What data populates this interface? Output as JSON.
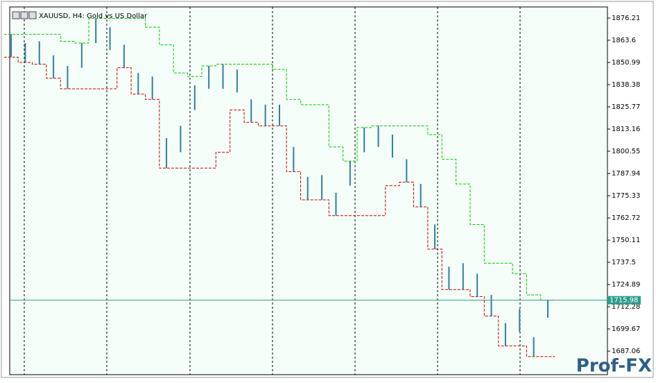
{
  "chart_data": {
    "type": "ohlc",
    "title": "XAUUSD, H4:  Gold vs US Dollar",
    "high": [
      1867,
      1862,
      1863,
      1855,
      1849,
      1862,
      1876,
      1871,
      1861,
      1845,
      1843,
      1808,
      1815,
      1838,
      1849,
      1850,
      1847,
      1830,
      1827,
      1827,
      1803,
      1786,
      1787,
      1777,
      1795,
      1814,
      1815,
      1810,
      1796,
      1782,
      1759,
      1735,
      1737,
      1731,
      1719,
      1703,
      1711,
      1695,
      1716
    ],
    "low": [
      1854,
      1851,
      1850,
      1842,
      1836,
      1848,
      1862,
      1858,
      1848,
      1833,
      1830,
      1791,
      1800,
      1824,
      1836,
      1836,
      1834,
      1817,
      1815,
      1815,
      1789,
      1773,
      1773,
      1764,
      1781,
      1800,
      1803,
      1797,
      1783,
      1769,
      1745,
      1722,
      1722,
      1718,
      1707,
      1690,
      1698,
      1684,
      1706
    ],
    "upper": [
      1867,
      1867,
      1867,
      1867,
      1863,
      1862,
      1876,
      1876,
      1876,
      1876,
      1871,
      1861,
      1845,
      1843,
      1849,
      1850,
      1850,
      1850,
      1850,
      1847,
      1830,
      1827,
      1827,
      1803,
      1795,
      1814,
      1815,
      1815,
      1815,
      1815,
      1810,
      1796,
      1782,
      1759,
      1737,
      1737,
      1731,
      1719,
      1716
    ],
    "lower": [
      1854,
      1851,
      1850,
      1842,
      1836,
      1836,
      1836,
      1836,
      1848,
      1833,
      1830,
      1791,
      1791,
      1791,
      1791,
      1800,
      1824,
      1817,
      1815,
      1815,
      1789,
      1773,
      1773,
      1764,
      1764,
      1764,
      1764,
      1781,
      1783,
      1769,
      1745,
      1722,
      1722,
      1718,
      1707,
      1690,
      1690,
      1684,
      1684
    ],
    "bar_color": "#2f7f9f",
    "upper_color": "#00cc00",
    "lower_color": "#cc0000",
    "ylim": [
      1673.7,
      1882.5
    ],
    "yticks": [
      1876.21,
      1863.6,
      1850.99,
      1838.38,
      1825.77,
      1813.16,
      1800.55,
      1787.94,
      1775.33,
      1762.72,
      1750.11,
      1737.5,
      1724.89,
      1712.28,
      1699.67,
      1687.06
    ],
    "current_price": 1715.98,
    "current_color": "#2a9d8f",
    "watermark": "Prof-FX"
  }
}
